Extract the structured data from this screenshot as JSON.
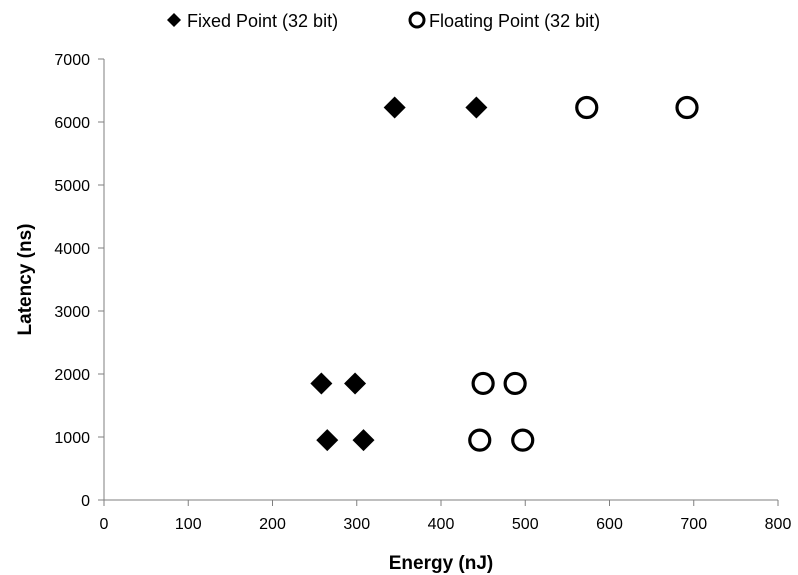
{
  "chart_data": {
    "type": "scatter",
    "title": "",
    "xlabel": "Energy (nJ)",
    "ylabel": "Latency (ns)",
    "xlim": [
      0,
      800
    ],
    "ylim": [
      0,
      7000
    ],
    "x_ticks": [
      0,
      100,
      200,
      300,
      400,
      500,
      600,
      700,
      800
    ],
    "y_ticks": [
      0,
      1000,
      2000,
      3000,
      4000,
      5000,
      6000,
      7000
    ],
    "grid": false,
    "legend_position": "top",
    "series": [
      {
        "name": "Fixed Point (32 bit)",
        "marker": "diamond",
        "color": "#000000",
        "points": [
          {
            "x": 345,
            "y": 6230
          },
          {
            "x": 442,
            "y": 6230
          },
          {
            "x": 258,
            "y": 1850
          },
          {
            "x": 298,
            "y": 1850
          },
          {
            "x": 265,
            "y": 950
          },
          {
            "x": 308,
            "y": 950
          }
        ]
      },
      {
        "name": "Floating Point (32 bit)",
        "marker": "open-circle",
        "color": "#000000",
        "points": [
          {
            "x": 573,
            "y": 6230
          },
          {
            "x": 692,
            "y": 6230
          },
          {
            "x": 450,
            "y": 1850
          },
          {
            "x": 488,
            "y": 1850
          },
          {
            "x": 446,
            "y": 950
          },
          {
            "x": 497,
            "y": 950
          }
        ]
      }
    ]
  }
}
